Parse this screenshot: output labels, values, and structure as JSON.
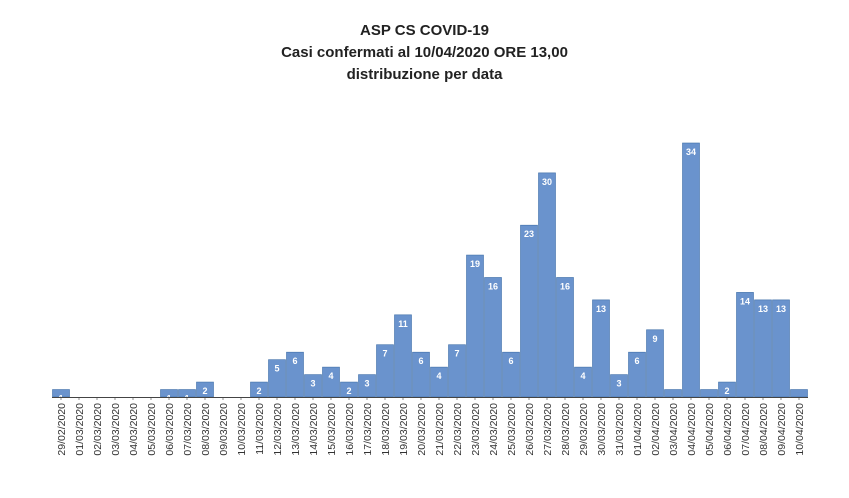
{
  "chart_data": {
    "type": "bar",
    "title": "ASP CS COVID-19",
    "subtitle_1": "Casi confermati al  10/04/2020 ORE 13,00",
    "subtitle_2": "distribuzione per data",
    "categories": [
      "29/02/2020",
      "01/03/2020",
      "02/03/2020",
      "03/03/2020",
      "04/03/2020",
      "05/03/2020",
      "06/03/2020",
      "07/03/2020",
      "08/03/2020",
      "09/03/2020",
      "10/03/2020",
      "11/03/2020",
      "12/03/2020",
      "13/03/2020",
      "14/03/2020",
      "15/03/2020",
      "16/03/2020",
      "17/03/2020",
      "18/03/2020",
      "19/03/2020",
      "20/03/2020",
      "21/03/2020",
      "22/03/2020",
      "23/03/2020",
      "24/03/2020",
      "25/03/2020",
      "26/03/2020",
      "27/03/2020",
      "28/03/2020",
      "29/03/2020",
      "30/03/2020",
      "31/03/2020",
      "01/04/2020",
      "02/04/2020",
      "03/04/2020",
      "04/04/2020",
      "05/04/2020",
      "06/04/2020",
      "07/04/2020",
      "08/04/2020",
      "09/04/2020",
      "10/04/2020"
    ],
    "values": [
      1,
      0,
      0,
      0,
      0,
      0,
      1,
      1,
      2,
      0,
      0,
      2,
      5,
      6,
      3,
      4,
      2,
      3,
      7,
      11,
      6,
      4,
      7,
      19,
      16,
      6,
      23,
      30,
      16,
      4,
      13,
      3,
      6,
      9,
      1,
      34,
      1,
      2,
      14,
      13,
      13,
      1
    ],
    "value_labels": [
      "1",
      "",
      "",
      "",
      "",
      "",
      "1",
      "1",
      "2",
      "",
      "",
      "2",
      "5",
      "6",
      "3",
      "4",
      "2",
      "3",
      "7",
      "11",
      "6",
      "4",
      "7",
      "19",
      "16",
      "6",
      "23",
      "30",
      "16",
      "4",
      "13",
      "3",
      "6",
      "9",
      "",
      "34",
      "",
      "2",
      "14",
      "13",
      "13",
      ""
    ],
    "ylim": [
      0,
      34
    ],
    "bar_color": "#6a93cd",
    "grid": false,
    "legend": "none",
    "xlabel": "",
    "ylabel": ""
  }
}
